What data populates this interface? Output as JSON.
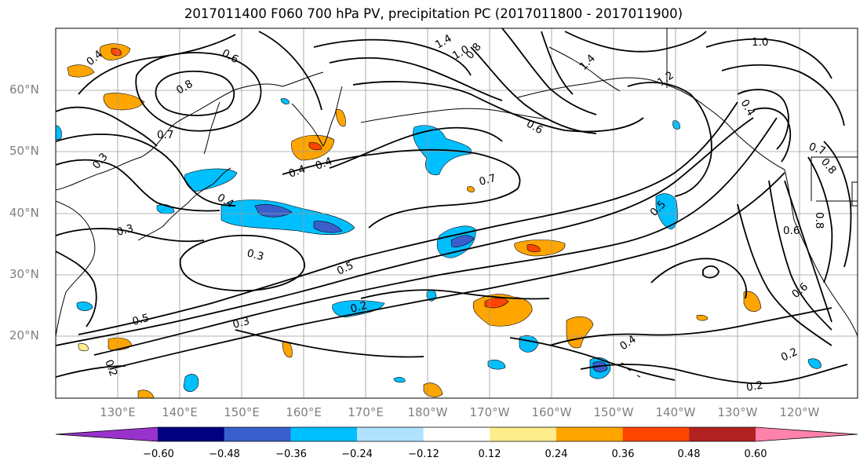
{
  "title": "2017011400 F060 700 hPa PV, precipitation PC (2017011800 - 2017011900)",
  "lat_labels": [
    "60°N",
    "50°N",
    "40°N",
    "30°N",
    "20°N"
  ],
  "lon_labels": [
    "130°E",
    "140°E",
    "150°E",
    "160°E",
    "170°E",
    "180°W",
    "170°W",
    "160°W",
    "150°W",
    "140°W",
    "130°W",
    "120°W"
  ],
  "colorbar": {
    "ticks": [
      "−0.60",
      "−0.48",
      "−0.36",
      "−0.24",
      "−0.12",
      "0.12",
      "0.24",
      "0.36",
      "0.48",
      "0.60"
    ],
    "colors": [
      "#9932cc",
      "#000080",
      "#3a5fcd",
      "#00bfff",
      "#b0e2ff",
      "#ffffff",
      "#ffec8b",
      "#ffa500",
      "#ff4500",
      "#b22222",
      "#ff82ab"
    ]
  },
  "contour_labels": [
    {
      "text": "0.4"
    },
    {
      "text": "0.6"
    },
    {
      "text": "0.8"
    },
    {
      "text": "0.7"
    },
    {
      "text": "0.3"
    },
    {
      "text": "0.4"
    },
    {
      "text": "0.4"
    },
    {
      "text": "0.4"
    },
    {
      "text": "0.7"
    },
    {
      "text": "0.3"
    },
    {
      "text": "0.5"
    },
    {
      "text": "0.5"
    },
    {
      "text": "0.3"
    },
    {
      "text": "0.2"
    },
    {
      "text": "0.3"
    },
    {
      "text": "0.2"
    },
    {
      "text": "0.4"
    },
    {
      "text": "0.2"
    },
    {
      "text": "0.2"
    },
    {
      "text": "0.6"
    },
    {
      "text": "0.6"
    },
    {
      "text": "0.8"
    },
    {
      "text": "1.4"
    },
    {
      "text": "1.2"
    },
    {
      "text": "1.0"
    },
    {
      "text": "0.4"
    },
    {
      "text": "0.7"
    },
    {
      "text": "0.8"
    },
    {
      "text": "0.8"
    },
    {
      "text": "1.4"
    },
    {
      "text": "1.0"
    },
    {
      "text": "0.6"
    },
    {
      "text": "0.5"
    }
  ]
}
